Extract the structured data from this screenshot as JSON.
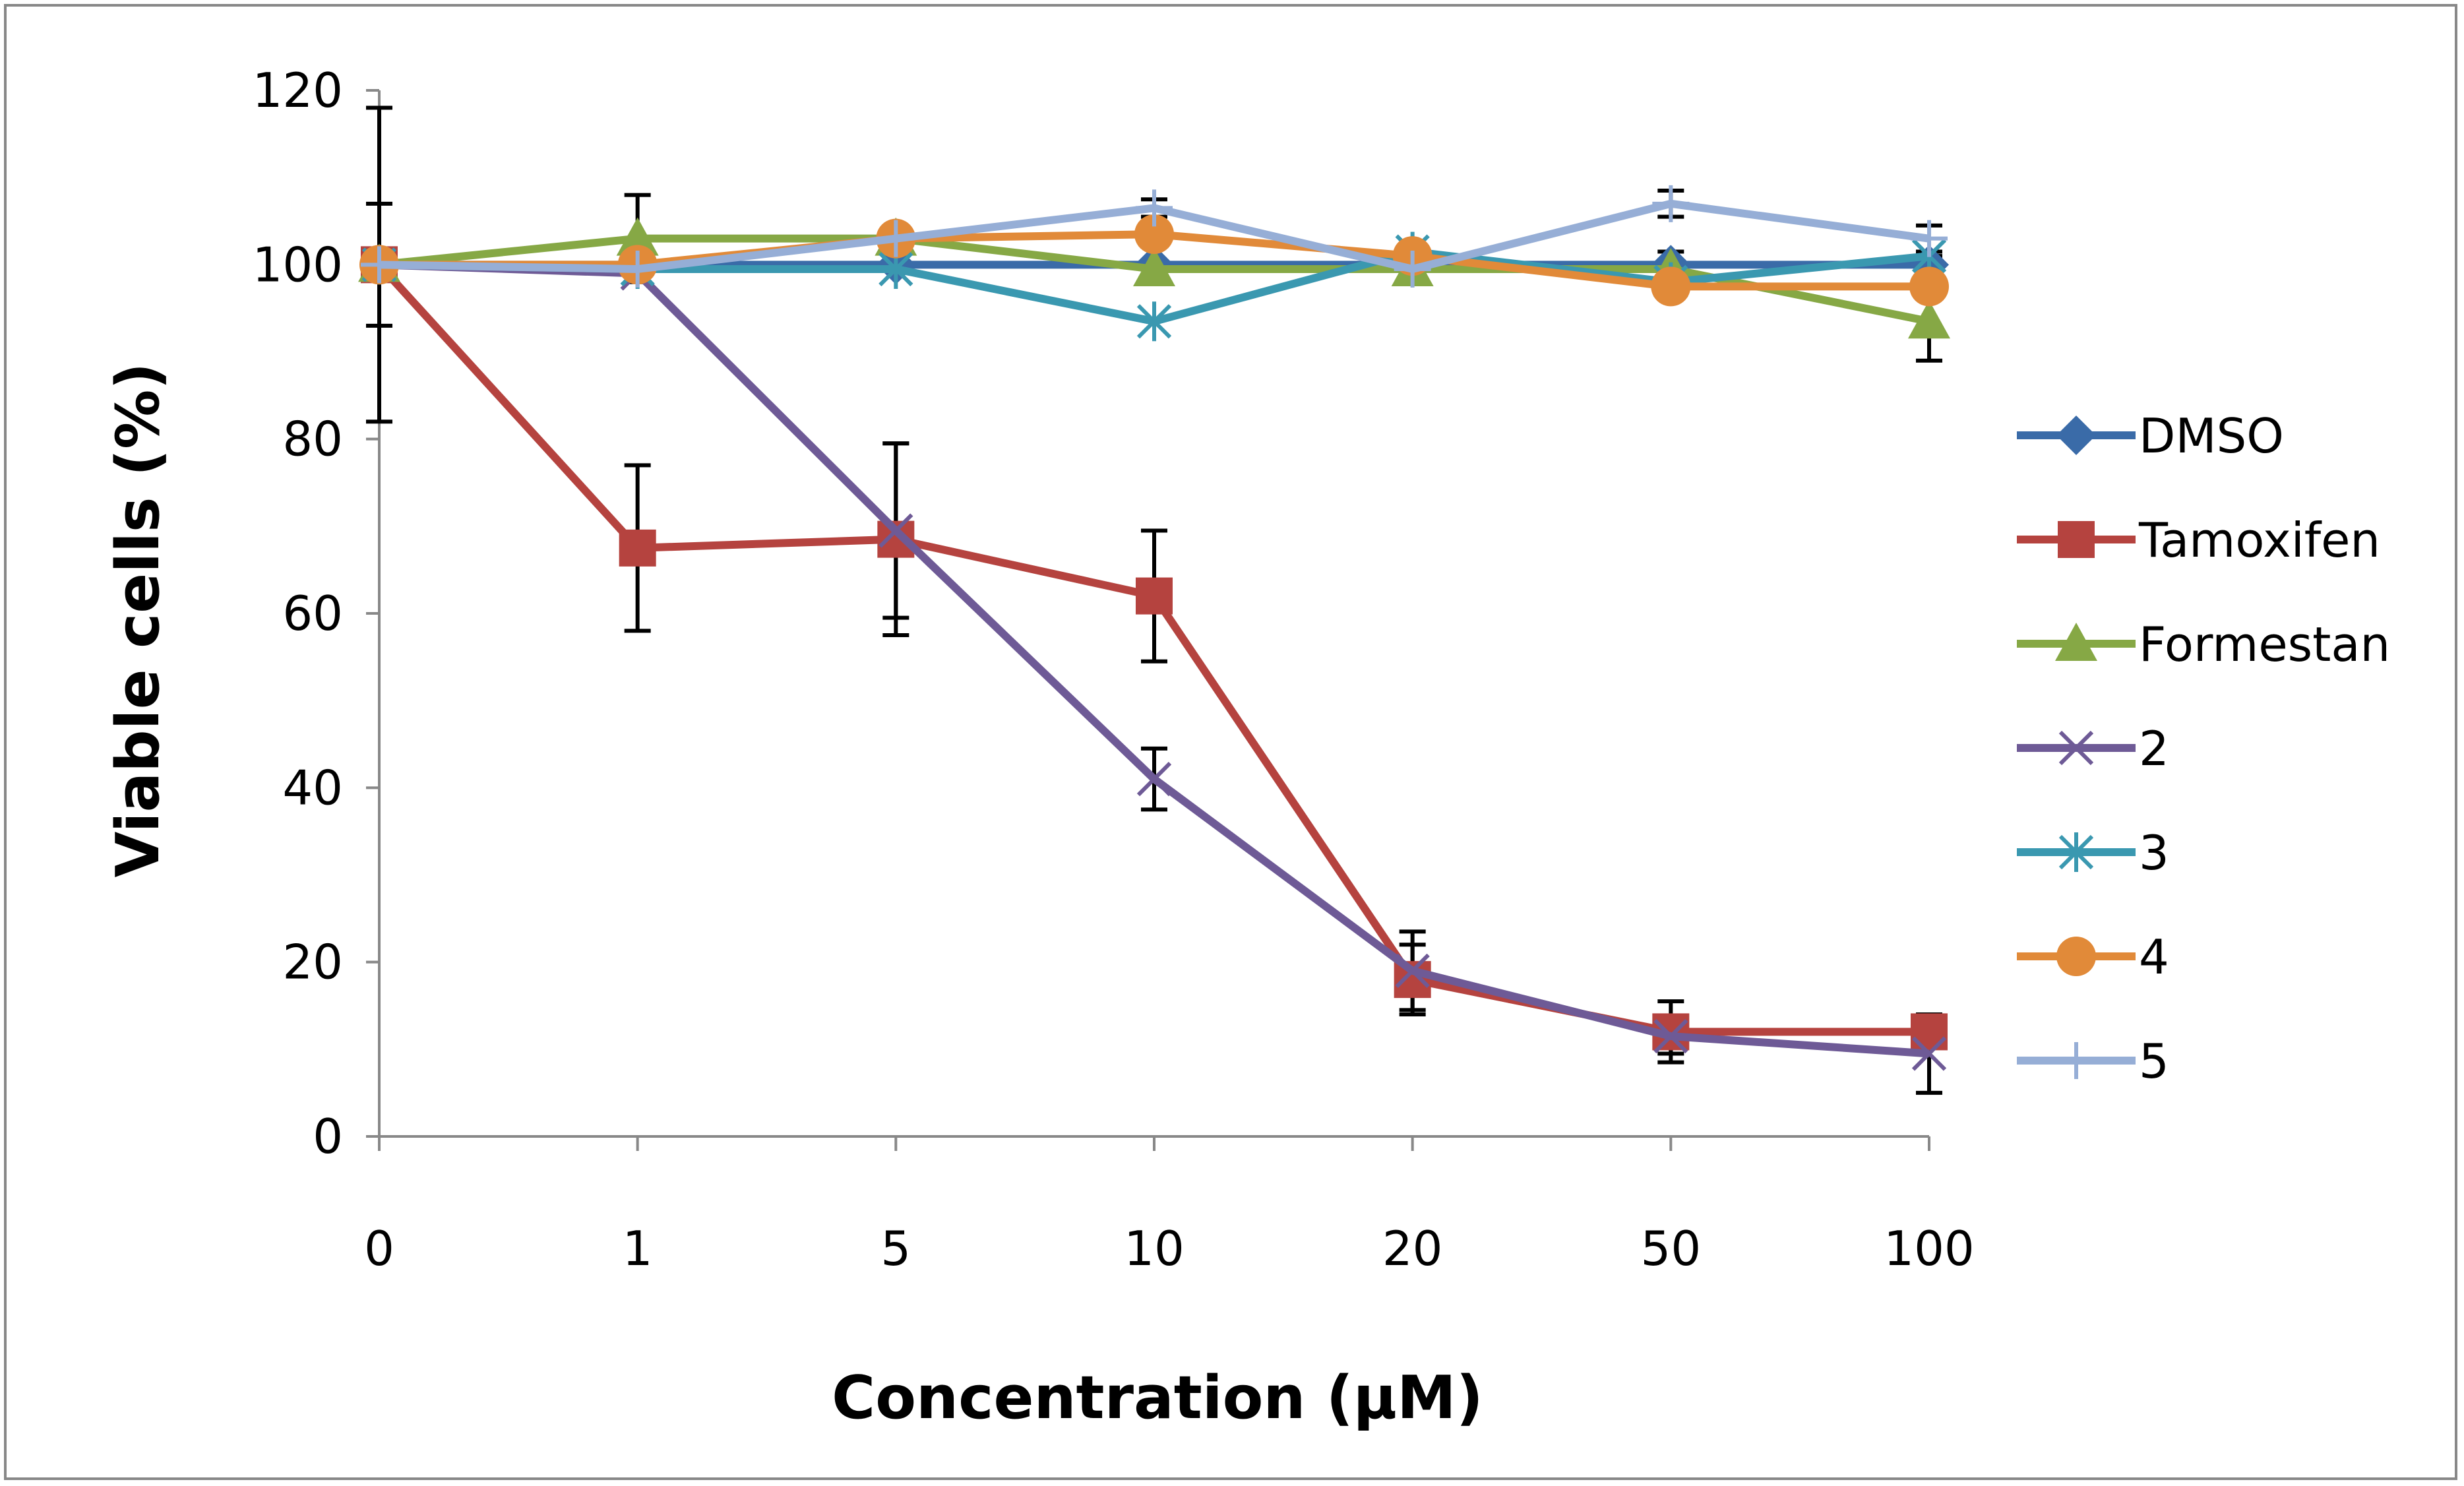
{
  "chart_data": {
    "type": "line",
    "title": "",
    "xlabel": "Concentration (µM)",
    "ylabel": "Viable cells (%)",
    "categories": [
      "0",
      "1",
      "5",
      "10",
      "20",
      "50",
      "100"
    ],
    "ylim": [
      0,
      120
    ],
    "yticks": [
      "0",
      "20",
      "40",
      "60",
      "80",
      "100",
      "120"
    ],
    "legend_position": "right",
    "series": [
      {
        "name": "DMSO",
        "color": "#3A6BA8",
        "marker": "diamond",
        "values": [
          100,
          100,
          100,
          100,
          100,
          100,
          100
        ],
        "errors": [
          18,
          0,
          0,
          0,
          0,
          1.5,
          1
        ]
      },
      {
        "name": "Tamoxifen",
        "color": "#B5433F",
        "marker": "square",
        "values": [
          100,
          67.5,
          68.5,
          62,
          18,
          12,
          12
        ],
        "errors": [
          7,
          9.5,
          11,
          7.5,
          4,
          3.5,
          0
        ]
      },
      {
        "name": "Formestan",
        "color": "#86A845",
        "marker": "triangle",
        "values": [
          100,
          103,
          103,
          99.5,
          99.5,
          99.5,
          93.5
        ],
        "errors": [
          0,
          5,
          0,
          0,
          0,
          0,
          4.5
        ]
      },
      {
        "name": "2",
        "color": "#6E5A96",
        "marker": "x",
        "values": [
          100,
          99,
          69.5,
          41,
          19,
          11.5,
          9.5
        ],
        "errors": [
          0,
          0,
          10,
          3.5,
          4.5,
          2,
          4.5
        ]
      },
      {
        "name": "3",
        "color": "#3A98B0",
        "marker": "star",
        "values": [
          100,
          99.5,
          99.5,
          93.5,
          101.5,
          98,
          101
        ],
        "errors": [
          0,
          0,
          0,
          0,
          0,
          0,
          0
        ]
      },
      {
        "name": "4",
        "color": "#E18A39",
        "marker": "circle",
        "values": [
          100,
          100,
          103,
          103.5,
          101,
          97.5,
          97.5
        ],
        "errors": [
          0,
          0,
          0,
          0,
          0,
          0,
          0
        ]
      },
      {
        "name": "5",
        "color": "#96AED6",
        "marker": "plus",
        "values": [
          100,
          99.5,
          103,
          106.5,
          99.5,
          107,
          103
        ],
        "errors": [
          0,
          0,
          0,
          1,
          0,
          1.5,
          1.5
        ]
      }
    ]
  }
}
